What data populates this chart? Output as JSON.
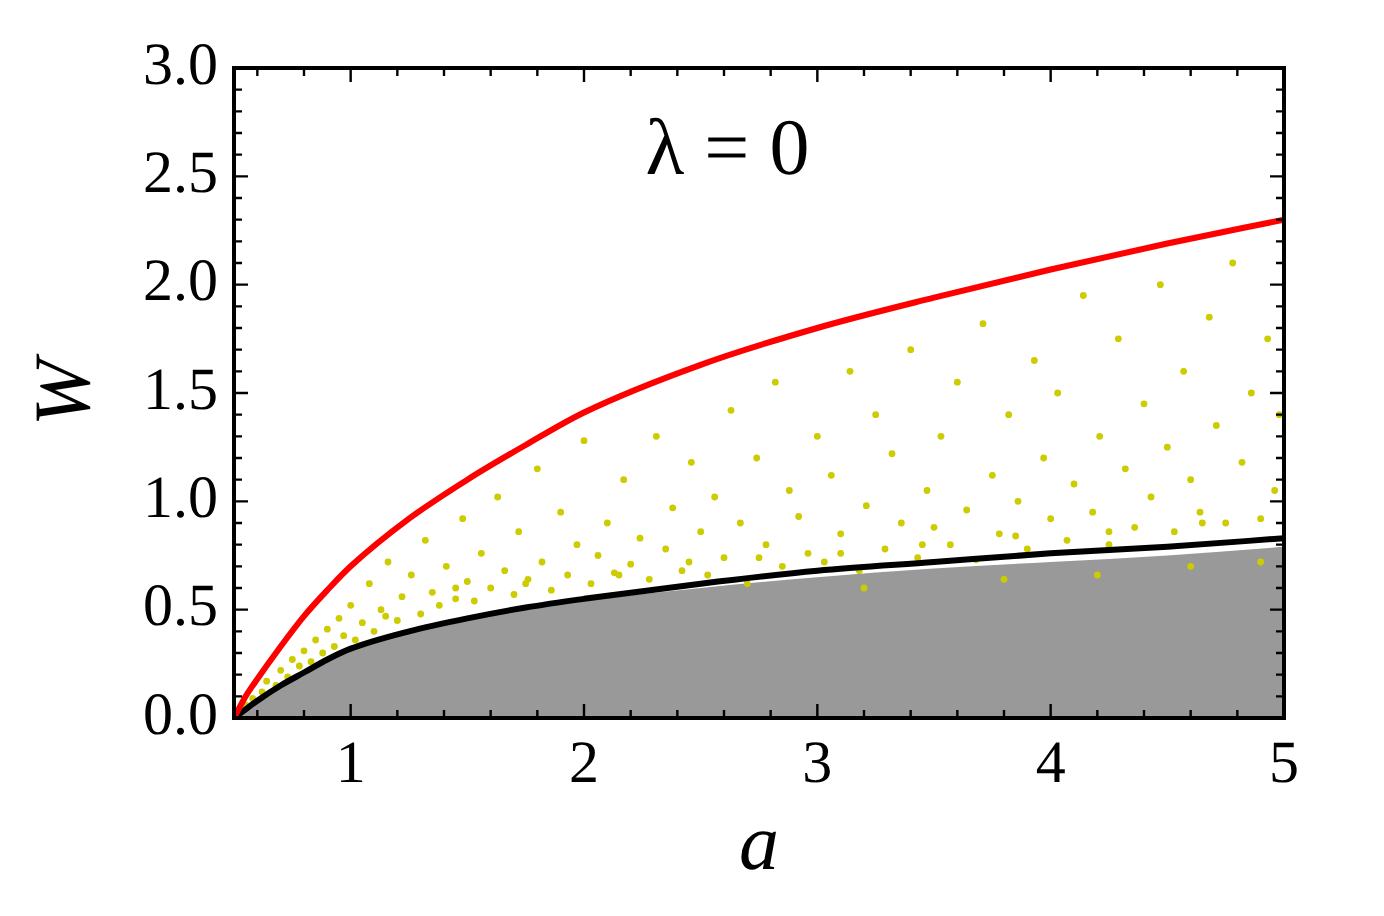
{
  "chart_data": {
    "type": "scatter",
    "xlabel": "a",
    "ylabel": "W",
    "annotations": [
      "λ = 0"
    ],
    "xlim": [
      0.5,
      5
    ],
    "ylim": [
      0,
      3
    ],
    "xticks": [
      {
        "value": 0.6,
        "label": null
      },
      {
        "value": 0.8,
        "label": null
      },
      1,
      {
        "value": 1.2,
        "label": null
      },
      {
        "value": 1.4,
        "label": null
      },
      {
        "value": 1.6,
        "label": null
      },
      {
        "value": 1.8,
        "label": null
      },
      2,
      {
        "value": 2.2,
        "label": null
      },
      {
        "value": 2.4,
        "label": null
      },
      {
        "value": 2.6,
        "label": null
      },
      {
        "value": 2.8,
        "label": null
      },
      3,
      {
        "value": 3.2,
        "label": null
      },
      {
        "value": 3.4,
        "label": null
      },
      {
        "value": 3.6,
        "label": null
      },
      {
        "value": 3.8,
        "label": null
      },
      4,
      {
        "value": 4.2,
        "label": null
      },
      {
        "value": 4.4,
        "label": null
      },
      {
        "value": 4.6,
        "label": null
      },
      {
        "value": 4.8,
        "label": null
      },
      5
    ],
    "yticks": [
      {
        "value": 0,
        "label": "0.0"
      },
      {
        "value": 0.1,
        "label": null
      },
      {
        "value": 0.2,
        "label": null
      },
      {
        "value": 0.3,
        "label": null
      },
      {
        "value": 0.4,
        "label": null
      },
      0.5,
      {
        "value": 0.6,
        "label": null
      },
      {
        "value": 0.7,
        "label": null
      },
      {
        "value": 0.8,
        "label": null
      },
      {
        "value": 0.9,
        "label": null
      },
      {
        "value": 1,
        "label": "1.0"
      },
      {
        "value": 1.1,
        "label": null
      },
      {
        "value": 1.2,
        "label": null
      },
      {
        "value": 1.3,
        "label": null
      },
      {
        "value": 1.4,
        "label": null
      },
      1.5,
      {
        "value": 1.6,
        "label": null
      },
      {
        "value": 1.7,
        "label": null
      },
      {
        "value": 1.8,
        "label": null
      },
      {
        "value": 1.9,
        "label": null
      },
      {
        "value": 2,
        "label": "2.0"
      },
      {
        "value": 2.1,
        "label": null
      },
      {
        "value": 2.2,
        "label": null
      },
      {
        "value": 2.3,
        "label": null
      },
      {
        "value": 2.4,
        "label": null
      },
      2.5,
      {
        "value": 2.6,
        "label": null
      },
      {
        "value": 2.7,
        "label": null
      },
      {
        "value": 2.8,
        "label": null
      },
      {
        "value": 2.9,
        "label": null
      },
      {
        "value": 3,
        "label": "3.0"
      }
    ],
    "grid": false,
    "legend": false,
    "series": [
      {
        "type": "area",
        "color": "#999999",
        "x": [
          0.5,
          0.6,
          0.7,
          0.8,
          0.9,
          1.0,
          1.25,
          1.5,
          1.75,
          2.0,
          2.5,
          3.0,
          3.5,
          4.0,
          4.5,
          5.0
        ],
        "values": [
          0,
          0.07,
          0.14,
          0.2,
          0.26,
          0.31,
          0.39,
          0.45,
          0.5,
          0.54,
          0.6,
          0.65,
          0.69,
          0.72,
          0.75,
          0.79
        ]
      },
      {
        "color": "#cccc00",
        "marker": "circle",
        "x": [
          0.55,
          0.58,
          0.62,
          0.64,
          0.68,
          0.7,
          0.73,
          0.75,
          0.78,
          0.8,
          0.83,
          0.85,
          0.88,
          0.9,
          0.93,
          0.95,
          0.97,
          1.0,
          1.02,
          1.05,
          1.08,
          1.1,
          1.13,
          1.16,
          1.2,
          1.22,
          1.26,
          1.3,
          1.32,
          1.35,
          1.38,
          1.41,
          1.45,
          1.48,
          1.5,
          1.53,
          1.56,
          1.6,
          1.63,
          1.66,
          1.7,
          1.72,
          1.76,
          1.8,
          1.82,
          1.86,
          1.9,
          1.93,
          1.97,
          2.0,
          2.03,
          2.06,
          2.1,
          2.13,
          2.17,
          2.2,
          2.24,
          2.28,
          2.31,
          2.35,
          2.38,
          2.42,
          2.46,
          2.5,
          2.53,
          2.56,
          2.6,
          2.63,
          2.67,
          2.7,
          2.74,
          2.78,
          2.82,
          2.85,
          2.88,
          2.92,
          2.96,
          3.0,
          3.03,
          3.06,
          3.1,
          3.14,
          3.18,
          3.21,
          3.25,
          3.29,
          3.32,
          3.36,
          3.4,
          3.43,
          3.47,
          3.5,
          3.53,
          3.57,
          3.6,
          3.64,
          3.68,
          3.71,
          3.75,
          3.78,
          3.82,
          3.86,
          3.9,
          3.93,
          3.97,
          4.0,
          4.03,
          4.07,
          4.1,
          4.14,
          4.18,
          4.21,
          4.25,
          4.29,
          4.32,
          4.36,
          4.4,
          4.43,
          4.47,
          4.5,
          4.53,
          4.57,
          4.6,
          4.64,
          4.68,
          4.71,
          4.75,
          4.78,
          4.82,
          4.86,
          4.9,
          4.93,
          4.96,
          4.98,
          3.2,
          3.8,
          4.2,
          4.6,
          4.9,
          1.15,
          1.45,
          1.75,
          2.15,
          2.45,
          2.75,
          3.1,
          3.45,
          3.85,
          4.25,
          4.65
        ],
        "values": [
          0.06,
          0.09,
          0.12,
          0.17,
          0.15,
          0.22,
          0.19,
          0.27,
          0.24,
          0.31,
          0.26,
          0.36,
          0.3,
          0.41,
          0.33,
          0.46,
          0.38,
          0.52,
          0.36,
          0.44,
          0.62,
          0.4,
          0.5,
          0.72,
          0.45,
          0.56,
          0.66,
          0.48,
          0.82,
          0.58,
          0.52,
          0.7,
          0.55,
          0.92,
          0.63,
          0.54,
          0.76,
          0.6,
          1.02,
          0.68,
          0.57,
          0.86,
          0.64,
          1.15,
          0.72,
          0.59,
          0.95,
          0.66,
          0.8,
          1.28,
          0.62,
          0.75,
          0.9,
          0.67,
          1.1,
          0.71,
          0.83,
          0.64,
          1.3,
          0.78,
          0.97,
          0.68,
          1.18,
          0.86,
          0.66,
          1.02,
          0.74,
          1.42,
          0.9,
          0.62,
          1.2,
          0.8,
          1.55,
          0.7,
          1.05,
          0.93,
          0.76,
          1.3,
          0.72,
          1.12,
          0.85,
          1.6,
          0.68,
          0.98,
          1.4,
          0.78,
          1.22,
          0.9,
          1.7,
          0.74,
          1.05,
          0.88,
          1.3,
          0.8,
          1.55,
          0.96,
          0.73,
          1.82,
          1.12,
          0.85,
          1.4,
          1.0,
          0.78,
          1.65,
          1.2,
          0.92,
          1.5,
          0.82,
          1.08,
          1.95,
          0.95,
          1.3,
          0.8,
          1.75,
          1.15,
          0.88,
          1.45,
          1.02,
          2.0,
          1.25,
          0.86,
          1.6,
          1.1,
          0.95,
          1.85,
          1.35,
          0.9,
          2.1,
          1.18,
          1.5,
          0.92,
          1.75,
          1.05,
          1.4,
          0.6,
          0.64,
          0.66,
          0.7,
          0.72,
          0.47,
          0.6,
          0.62,
          0.66,
          0.72,
          0.74,
          0.76,
          0.8,
          0.84,
          0.86,
          0.9
        ]
      },
      {
        "type": "line",
        "color": "#000000",
        "x": [
          0.5,
          0.55,
          0.6,
          0.7,
          0.8,
          0.9,
          1.0,
          1.25,
          1.5,
          1.75,
          2.0,
          2.5,
          3.0,
          3.5,
          4.0,
          4.5,
          5.0
        ],
        "values": [
          0,
          0.04,
          0.08,
          0.15,
          0.21,
          0.27,
          0.32,
          0.4,
          0.46,
          0.51,
          0.55,
          0.62,
          0.68,
          0.72,
          0.76,
          0.79,
          0.83
        ]
      },
      {
        "type": "line",
        "color": "#ff0000",
        "x": [
          0.5,
          0.55,
          0.6,
          0.7,
          0.8,
          0.9,
          1.0,
          1.25,
          1.5,
          1.75,
          2.0,
          2.5,
          3.0,
          3.5,
          4.0,
          4.5,
          5.0
        ],
        "values": [
          0,
          0.1,
          0.18,
          0.33,
          0.47,
          0.59,
          0.7,
          0.92,
          1.1,
          1.26,
          1.41,
          1.63,
          1.8,
          1.94,
          2.07,
          2.19,
          2.3
        ]
      }
    ]
  }
}
